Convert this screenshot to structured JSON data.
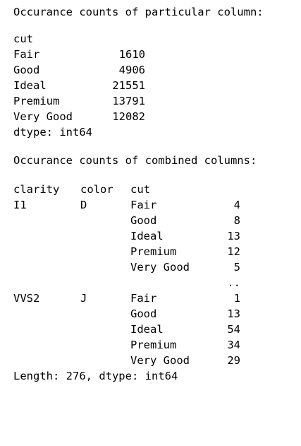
{
  "output": {
    "header1": "Occurance counts of particular column:",
    "series1": {
      "index_name": "cut",
      "rows": [
        {
          "label": "Fair",
          "count": "1610"
        },
        {
          "label": "Good",
          "count": "4906"
        },
        {
          "label": "Ideal",
          "count": "21551"
        },
        {
          "label": "Premium",
          "count": "13791"
        },
        {
          "label": "Very Good",
          "count": "12082"
        }
      ],
      "dtype_line": "dtype: int64"
    },
    "header2": "Occurance counts of combined columns:",
    "series2": {
      "index_names": [
        "clarity",
        "color",
        "cut"
      ],
      "rows": [
        {
          "clarity": "I1",
          "color": "D",
          "cut": "Fair",
          "count": "4"
        },
        {
          "clarity": "",
          "color": "",
          "cut": "Good",
          "count": "8"
        },
        {
          "clarity": "",
          "color": "",
          "cut": "Ideal",
          "count": "13"
        },
        {
          "clarity": "",
          "color": "",
          "cut": "Premium",
          "count": "12"
        },
        {
          "clarity": "",
          "color": "",
          "cut": "Very Good",
          "count": "5"
        },
        {
          "clarity": "",
          "color": "",
          "cut": "",
          "count": ".."
        },
        {
          "clarity": "VVS2",
          "color": "J",
          "cut": "Fair",
          "count": "1"
        },
        {
          "clarity": "",
          "color": "",
          "cut": "Good",
          "count": "13"
        },
        {
          "clarity": "",
          "color": "",
          "cut": "Ideal",
          "count": "54"
        },
        {
          "clarity": "",
          "color": "",
          "cut": "Premium",
          "count": "34"
        },
        {
          "clarity": "",
          "color": "",
          "cut": "Very Good",
          "count": "29"
        }
      ],
      "footer": "Length: 276, dtype: int64"
    }
  }
}
